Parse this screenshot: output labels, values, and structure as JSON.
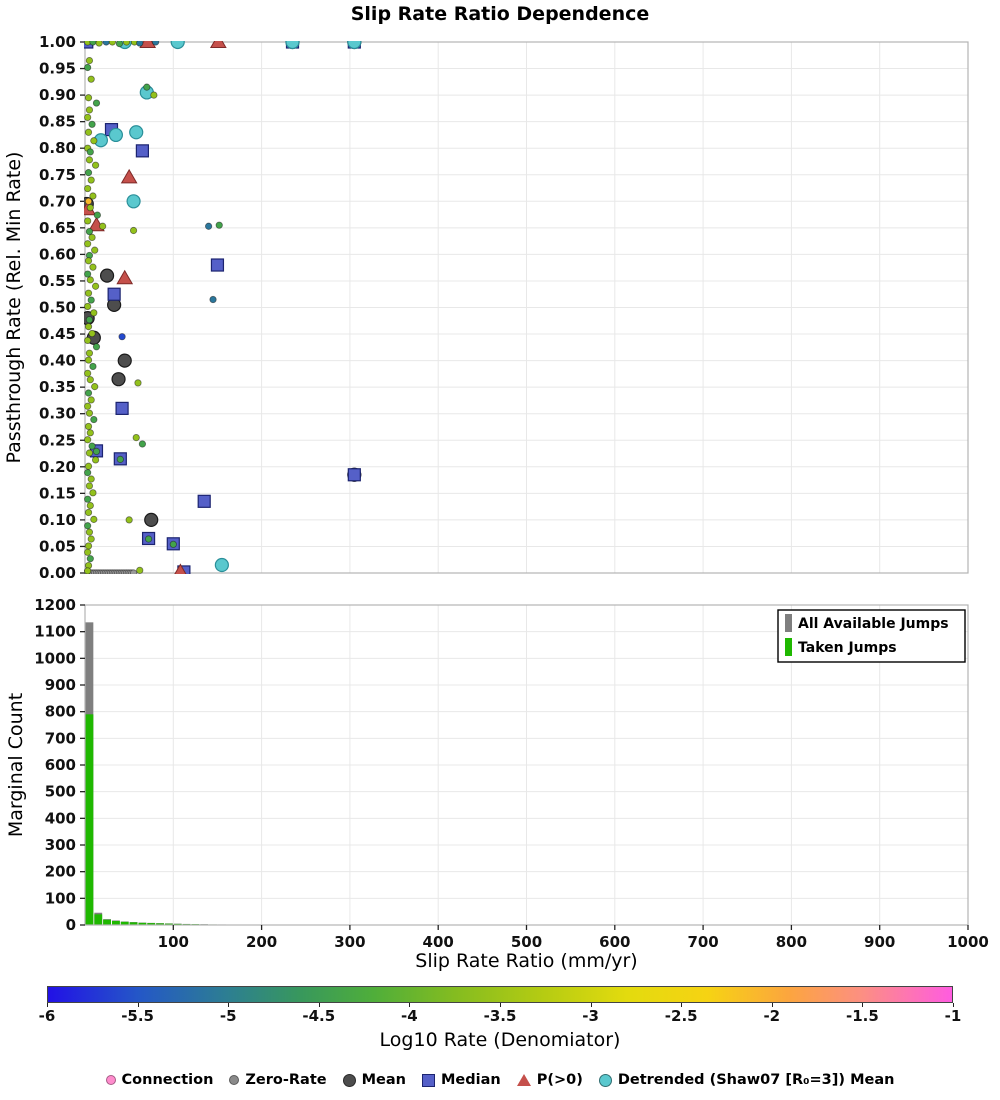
{
  "title": "Slip Rate Ratio Dependence",
  "xaxis": {
    "label": "Slip Rate Ratio (mm/yr)",
    "ticks": [
      100,
      200,
      300,
      400,
      500,
      600,
      700,
      800,
      900,
      1000
    ]
  },
  "colorbar": {
    "label": "Log10 Rate (Denomiator)",
    "range": [
      -6,
      -1
    ],
    "ticks": [
      "-6",
      "-5.5",
      "-5",
      "-4.5",
      "-4",
      "-3.5",
      "-3",
      "-2.5",
      "-2",
      "-1.5",
      "-1"
    ],
    "stops": [
      {
        "t": 0,
        "color": "#2211e6"
      },
      {
        "t": 0.1,
        "color": "#2457c7"
      },
      {
        "t": 0.2,
        "color": "#2d7f91"
      },
      {
        "t": 0.28,
        "color": "#38985c"
      },
      {
        "t": 0.36,
        "color": "#4fae3a"
      },
      {
        "t": 0.45,
        "color": "#84bc20"
      },
      {
        "t": 0.55,
        "color": "#b6cc12"
      },
      {
        "t": 0.64,
        "color": "#e3db0e"
      },
      {
        "t": 0.73,
        "color": "#f6d313"
      },
      {
        "t": 0.82,
        "color": "#fca53f"
      },
      {
        "t": 0.9,
        "color": "#fc8f82"
      },
      {
        "t": 1,
        "color": "#ff5ce0"
      }
    ]
  },
  "legend": {
    "items": [
      {
        "label": "Connection",
        "marker": "dot",
        "color": "#ff8ccd"
      },
      {
        "label": "Zero-Rate",
        "marker": "dot",
        "color": "#8a8a8a"
      },
      {
        "label": "Mean",
        "marker": "circle",
        "color": "#4d4d4d"
      },
      {
        "label": "Median",
        "marker": "square",
        "color": "#5560c8"
      },
      {
        "label": "P(>0)",
        "marker": "triangle",
        "color": "#c5504b"
      },
      {
        "label": "Detrended (Shaw07 [R₀=3]) Mean",
        "marker": "circle",
        "color": "#5ac8ce"
      }
    ]
  },
  "chart_data": [
    {
      "type": "scatter",
      "title": "Slip Rate Ratio Dependence",
      "ylabel": "Passthrough Rate (Rel. Min Rate)",
      "xlim": [
        0,
        1000
      ],
      "ylim": [
        0,
        1
      ],
      "yticks": [
        0,
        0.05,
        0.1,
        0.15,
        0.2,
        0.25,
        0.3,
        0.35,
        0.4,
        0.45,
        0.5,
        0.55,
        0.6,
        0.65,
        0.7,
        0.75,
        0.8,
        0.85,
        0.9,
        0.95,
        1
      ],
      "xgrid": [
        100,
        200,
        300,
        400,
        500,
        600,
        700,
        800,
        900,
        1000
      ],
      "series": [
        {
          "name": "Mean",
          "marker": "circle",
          "color": "#4d4d4d",
          "edge": "#1a1a1a",
          "points": [
            [
              3,
              0.48
            ],
            [
              25,
              0.56
            ],
            [
              33,
              0.505
            ],
            [
              10,
              0.443
            ],
            [
              45,
              0.4
            ],
            [
              38,
              0.365
            ],
            [
              2,
              0.695
            ],
            [
              75,
              0.1
            ],
            [
              305,
              0.185
            ],
            [
              235,
              1.0
            ],
            [
              305,
              1.0
            ]
          ]
        },
        {
          "name": "Median",
          "marker": "square",
          "color": "#5560c8",
          "edge": "#1c2470",
          "points": [
            [
              2,
              1.0
            ],
            [
              30,
              0.835
            ],
            [
              65,
              0.795
            ],
            [
              150,
              0.58
            ],
            [
              33,
              0.525
            ],
            [
              42,
              0.31
            ],
            [
              13,
              0.23
            ],
            [
              40,
              0.215
            ],
            [
              305,
              0.185
            ],
            [
              135,
              0.135
            ],
            [
              72,
              0.065
            ],
            [
              100,
              0.055
            ],
            [
              112,
              0.002
            ],
            [
              235,
              1.0
            ],
            [
              305,
              1.0
            ]
          ]
        },
        {
          "name": "P(>0)",
          "marker": "triangle",
          "color": "#c5504b",
          "edge": "#7e2a28",
          "points": [
            [
              50,
              0.745
            ],
            [
              3,
              0.685
            ],
            [
              13,
              0.655
            ],
            [
              45,
              0.555
            ],
            [
              71,
              1.0
            ],
            [
              151,
              1.0
            ],
            [
              108,
              0.002
            ]
          ]
        },
        {
          "name": "Detrended (Shaw07 [R₀=3]) Mean",
          "marker": "circle",
          "color": "#5ac8ce",
          "edge": "#2a8f99",
          "points": [
            [
              70,
              0.905
            ],
            [
              58,
              0.83
            ],
            [
              35,
              0.825
            ],
            [
              18,
              0.815
            ],
            [
              55,
              0.7
            ],
            [
              105,
              1.0
            ],
            [
              45,
              1.0
            ],
            [
              155,
              0.015
            ],
            [
              235,
              1.0
            ],
            [
              305,
              1.0
            ]
          ]
        },
        {
          "name": "Zero-Rate",
          "marker": "dot",
          "color": "#9a9a9a",
          "edge": "#6b6b6b",
          "points": [
            [
              1,
              0
            ],
            [
              3,
              0
            ],
            [
              5,
              0
            ],
            [
              7,
              0
            ],
            [
              9,
              0
            ],
            [
              11,
              0
            ],
            [
              13,
              0
            ],
            [
              15,
              0
            ],
            [
              17,
              0
            ],
            [
              19,
              0
            ],
            [
              21,
              0
            ],
            [
              23,
              0
            ],
            [
              25,
              0
            ],
            [
              27,
              0
            ],
            [
              29,
              0
            ],
            [
              31,
              0
            ],
            [
              33,
              0
            ],
            [
              35,
              0
            ],
            [
              37,
              0
            ],
            [
              39,
              0
            ],
            [
              41,
              0
            ],
            [
              43,
              0
            ],
            [
              45,
              0
            ],
            [
              47,
              0
            ],
            [
              49,
              0
            ],
            [
              51,
              0
            ],
            [
              53,
              0
            ],
            [
              55,
              0
            ]
          ]
        },
        {
          "name": "Connection",
          "marker": "dot",
          "colormap": true,
          "points": [
            [
              3,
              1.0,
              -3.6
            ],
            [
              9,
              1.0,
              -4.4
            ],
            [
              16,
              0.998,
              -3.6
            ],
            [
              24,
              1.0,
              -5.1
            ],
            [
              31,
              1.0,
              -3.6
            ],
            [
              39,
              0.997,
              -4.4
            ],
            [
              47,
              1.0,
              -3.6
            ],
            [
              56,
              1.0,
              -3.6
            ],
            [
              62,
              0.998,
              -5.1
            ],
            [
              80,
              1.0,
              -5.1
            ],
            [
              5,
              0.965,
              -3.6
            ],
            [
              3,
              0.952,
              -4.4
            ],
            [
              7,
              0.93,
              -3.6
            ],
            [
              70,
              0.915,
              -4.4
            ],
            [
              78,
              0.9,
              -3.6
            ],
            [
              4,
              0.895,
              -3.6
            ],
            [
              13,
              0.885,
              -4.4
            ],
            [
              5,
              0.872,
              -3.6
            ],
            [
              3,
              0.858,
              -3.6
            ],
            [
              8,
              0.845,
              -4.4
            ],
            [
              4,
              0.83,
              -3.6
            ],
            [
              10,
              0.814,
              -3.6
            ],
            [
              3,
              0.8,
              -3.6
            ],
            [
              6,
              0.793,
              -4.4
            ],
            [
              5,
              0.778,
              -3.6
            ],
            [
              12,
              0.768,
              -3.6
            ],
            [
              4,
              0.754,
              -4.4
            ],
            [
              7,
              0.74,
              -3.6
            ],
            [
              3,
              0.724,
              -3.6
            ],
            [
              9,
              0.71,
              -3.6
            ],
            [
              4,
              0.7,
              -2.1
            ],
            [
              6,
              0.688,
              -3.6
            ],
            [
              14,
              0.674,
              -4.4
            ],
            [
              3,
              0.663,
              -3.6
            ],
            [
              20,
              0.653,
              -3.6
            ],
            [
              152,
              0.655,
              -4.4
            ],
            [
              140,
              0.653,
              -5.1
            ],
            [
              55,
              0.645,
              -3.6
            ],
            [
              5,
              0.643,
              -4.4
            ],
            [
              8,
              0.632,
              -3.6
            ],
            [
              3,
              0.62,
              -3.6
            ],
            [
              11,
              0.608,
              -3.6
            ],
            [
              5,
              0.598,
              -4.4
            ],
            [
              4,
              0.588,
              -3.6
            ],
            [
              9,
              0.576,
              -3.6
            ],
            [
              3,
              0.563,
              -4.4
            ],
            [
              6,
              0.552,
              -3.6
            ],
            [
              12,
              0.54,
              -3.6
            ],
            [
              4,
              0.527,
              -3.6
            ],
            [
              7,
              0.514,
              -4.4
            ],
            [
              145,
              0.515,
              -5.1
            ],
            [
              3,
              0.502,
              -3.6
            ],
            [
              10,
              0.49,
              -3.6
            ],
            [
              5,
              0.477,
              -4.4
            ],
            [
              4,
              0.464,
              -3.6
            ],
            [
              8,
              0.451,
              -3.6
            ],
            [
              42,
              0.445,
              -5.6
            ],
            [
              3,
              0.438,
              -3.6
            ],
            [
              13,
              0.426,
              -4.4
            ],
            [
              5,
              0.414,
              -3.6
            ],
            [
              4,
              0.401,
              -3.6
            ],
            [
              9,
              0.389,
              -4.4
            ],
            [
              3,
              0.376,
              -3.6
            ],
            [
              6,
              0.364,
              -3.6
            ],
            [
              60,
              0.358,
              -3.6
            ],
            [
              11,
              0.351,
              -3.6
            ],
            [
              4,
              0.339,
              -4.4
            ],
            [
              7,
              0.326,
              -3.6
            ],
            [
              3,
              0.314,
              -3.6
            ],
            [
              5,
              0.301,
              -3.6
            ],
            [
              10,
              0.289,
              -4.4
            ],
            [
              4,
              0.276,
              -3.6
            ],
            [
              6,
              0.264,
              -3.6
            ],
            [
              58,
              0.255,
              -3.6
            ],
            [
              3,
              0.251,
              -3.6
            ],
            [
              65,
              0.243,
              -4.4
            ],
            [
              8,
              0.239,
              -4.4
            ],
            [
              13,
              0.229,
              -4.4
            ],
            [
              5,
              0.226,
              -3.6
            ],
            [
              40,
              0.214,
              -4.4
            ],
            [
              12,
              0.213,
              -3.6
            ],
            [
              4,
              0.201,
              -3.6
            ],
            [
              3,
              0.189,
              -4.4
            ],
            [
              7,
              0.177,
              -3.6
            ],
            [
              5,
              0.164,
              -3.6
            ],
            [
              9,
              0.151,
              -3.6
            ],
            [
              3,
              0.139,
              -4.4
            ],
            [
              6,
              0.127,
              -3.6
            ],
            [
              4,
              0.114,
              -3.6
            ],
            [
              10,
              0.101,
              -3.6
            ],
            [
              50,
              0.1,
              -3.6
            ],
            [
              3,
              0.089,
              -4.4
            ],
            [
              5,
              0.077,
              -3.6
            ],
            [
              72,
              0.064,
              -4.4
            ],
            [
              7,
              0.064,
              -3.6
            ],
            [
              100,
              0.054,
              -4.4
            ],
            [
              4,
              0.051,
              -3.6
            ],
            [
              3,
              0.039,
              -3.6
            ],
            [
              6,
              0.027,
              -4.4
            ],
            [
              4,
              0.014,
              -3.6
            ],
            [
              62,
              0.005,
              -3.6
            ],
            [
              3,
              0.004,
              -3.6
            ]
          ]
        }
      ]
    },
    {
      "type": "bar",
      "ylabel": "Marginal Count",
      "ylim": [
        0,
        1200
      ],
      "yticks": [
        0,
        100,
        200,
        300,
        400,
        500,
        600,
        700,
        800,
        900,
        1000,
        1100,
        1200
      ],
      "bin_start": 0,
      "bin_width": 10,
      "series": [
        {
          "name": "All Available Jumps",
          "color": "#7f7f7f",
          "values": [
            1135,
            46,
            22,
            17,
            13,
            11,
            9,
            8,
            7,
            6,
            5,
            4,
            3,
            3,
            2,
            2
          ]
        },
        {
          "name": "Taken Jumps",
          "color": "#1fb800",
          "values": [
            790,
            40,
            20,
            15,
            12,
            10,
            8,
            7,
            6,
            5,
            4,
            3,
            3,
            2,
            2,
            1
          ]
        }
      ]
    }
  ]
}
